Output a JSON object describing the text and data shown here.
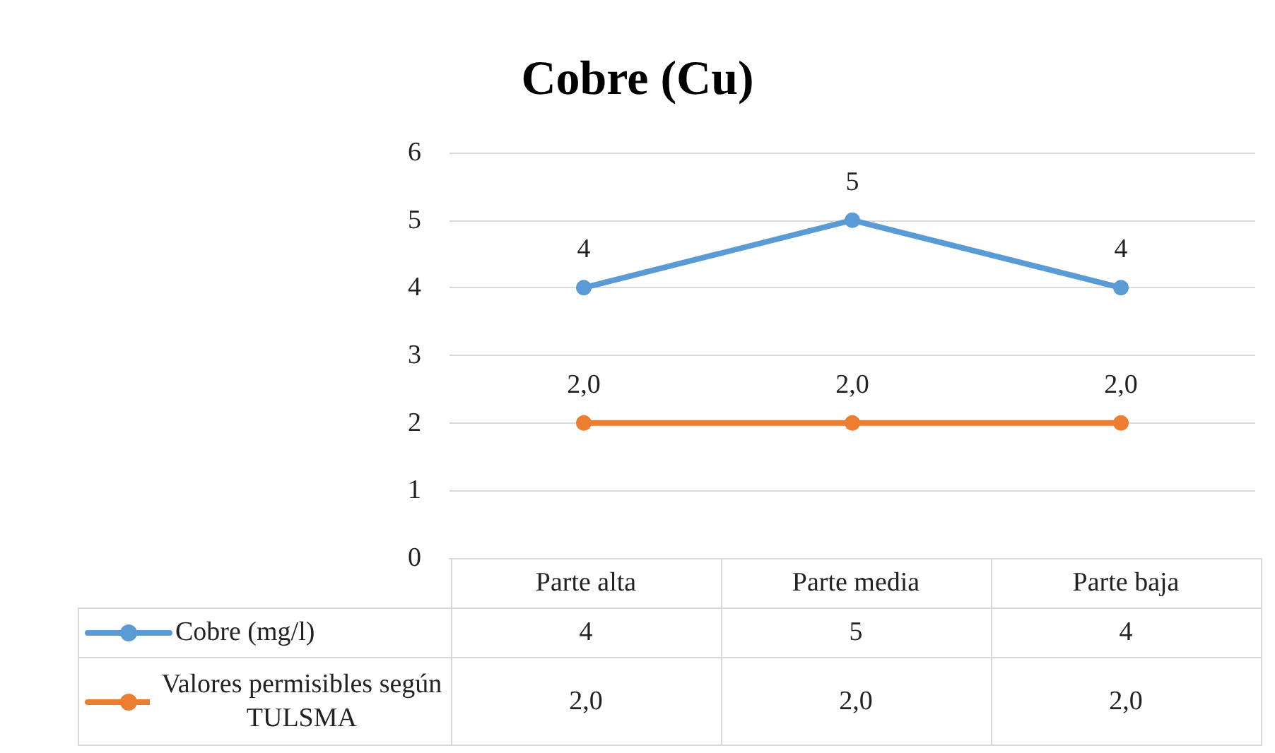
{
  "chart_data": {
    "type": "line",
    "title": "Cobre (Cu)",
    "categories": [
      "Parte alta",
      "Parte media",
      "Parte baja"
    ],
    "series": [
      {
        "name": "Cobre (mg/l)",
        "color": "#5b9bd5",
        "values": [
          4,
          5,
          4
        ],
        "value_labels": [
          "4",
          "5",
          "4"
        ]
      },
      {
        "name": "Valores permisibles según TULSMA",
        "color": "#ed7d31",
        "values": [
          2,
          2,
          2
        ],
        "value_labels": [
          "2,0",
          "2,0",
          "2,0"
        ]
      }
    ],
    "ylim": [
      0,
      6
    ],
    "yticks": [
      0,
      1,
      2,
      3,
      4,
      5,
      6
    ],
    "grid": "y",
    "legend": "bottom",
    "marker": "circle",
    "line_style": "solid"
  }
}
